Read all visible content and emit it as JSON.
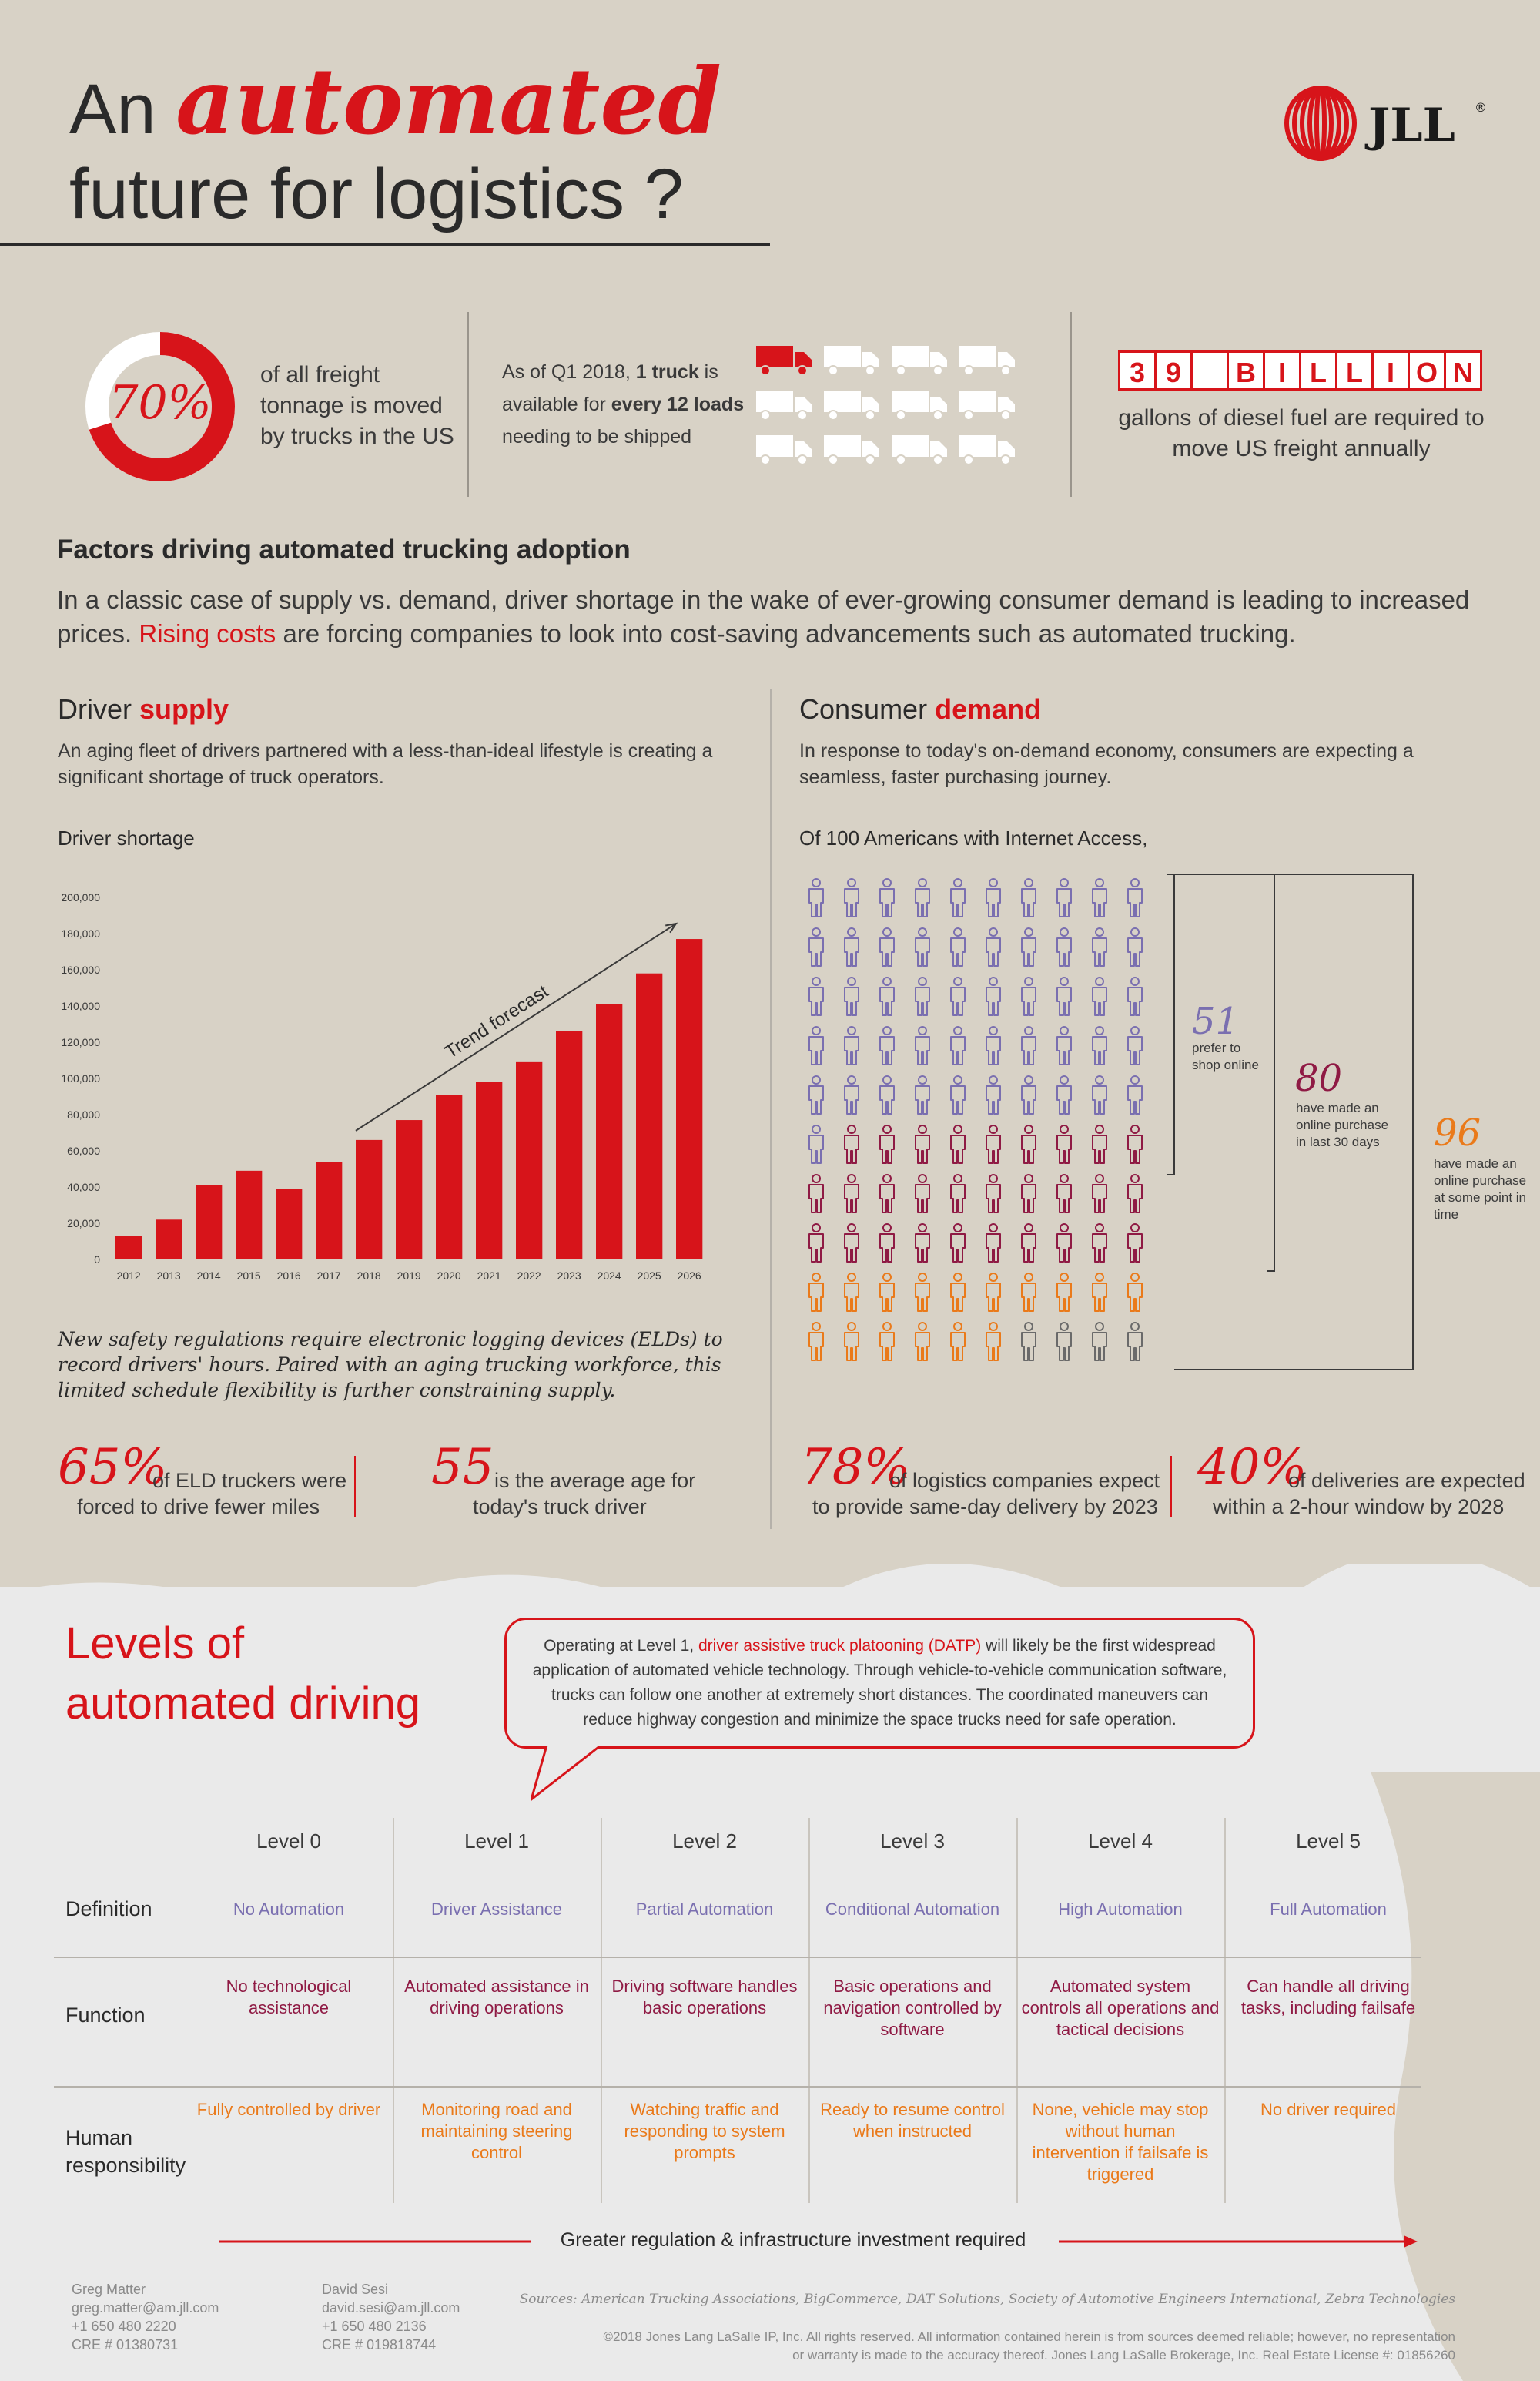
{
  "header": {
    "title_part1": "An",
    "title_accent": "automated",
    "title_part2": "future for logistics ?",
    "logo_text": "JLL",
    "logo_reg": "®"
  },
  "stats": {
    "freight_percent": "70%",
    "freight_percent_value": 0.7,
    "freight_text": [
      "of all freight",
      "tonnage is moved",
      "by trucks in the US"
    ],
    "truck_text_lines": [
      "As of Q1 2018,",
      "1 truck",
      "is",
      "available for",
      "every 12 loads",
      "needing to be shipped"
    ],
    "truck_highlighted": 1,
    "truck_total": 12,
    "diesel_letters": [
      "3",
      "9",
      "",
      "B",
      "I",
      "L",
      "L",
      "I",
      "O",
      "N"
    ],
    "diesel_text": [
      "gallons of diesel fuel are required to",
      "move US freight annually"
    ]
  },
  "factors": {
    "heading": "Factors driving automated trucking adoption",
    "body_pre": "In a classic case of supply vs. demand, driver shortage in the wake of ever-growing consumer demand is leading to increased prices.",
    "body_highlight": "Rising costs",
    "body_post": "are forcing companies to look into cost-saving advancements such as automated trucking."
  },
  "supply": {
    "heading_pre": "Driver",
    "heading_accent": "supply",
    "body": "An aging fleet of drivers partnered with a less-than-ideal lifestyle is creating a significant shortage of truck operators.",
    "chart_label": "Driver shortage",
    "trend_label": "Trend forecast",
    "note": "New safety regulations require electronic logging devices (ELDs) to record drivers' hours. Paired with an aging trucking workforce, this limited schedule flexibility is further constraining supply.",
    "stat1_value": "65%",
    "stat1_text": [
      "of ELD truckers were",
      "forced to drive fewer miles"
    ],
    "stat2_value": "55",
    "stat2_text": [
      "is the average age for",
      "today's truck driver"
    ]
  },
  "chart_data": {
    "type": "bar",
    "categories": [
      "2012",
      "2013",
      "2014",
      "2015",
      "2016",
      "2017",
      "2018",
      "2019",
      "2020",
      "2021",
      "2022",
      "2023",
      "2024",
      "2025",
      "2026"
    ],
    "values": [
      13000,
      22000,
      41000,
      49000,
      39000,
      54000,
      66000,
      77000,
      91000,
      98000,
      109000,
      126000,
      141000,
      158000,
      177000
    ],
    "ylim": [
      0,
      200000
    ],
    "yticks": [
      "0",
      "20,000",
      "40,000",
      "60,000",
      "80,000",
      "100,000",
      "120,000",
      "140,000",
      "160,000",
      "180,000",
      "200,000"
    ],
    "title": "Driver shortage",
    "bar_color": "#d7141a"
  },
  "demand": {
    "heading_pre": "Consumer",
    "heading_accent": "demand",
    "body": "In response to today's on-demand economy, consumers are expecting a seamless, faster purchasing journey.",
    "people_label": "Of 100 Americans with Internet Access,",
    "group1_value": "51",
    "group1_text": [
      "prefer to",
      "shop online"
    ],
    "group2_value": "80",
    "group2_text": [
      "have made an",
      "online purchase",
      "in last 30 days"
    ],
    "group3_value": "96",
    "group3_text": [
      "have made an",
      "online purchase",
      "at some point in",
      "time"
    ],
    "counts": {
      "shop_online": 51,
      "last_30_days": 80,
      "ever": 96,
      "total": 100
    },
    "colors": {
      "shop_online": "#7a6fb0",
      "last_30_days": "#8f1a44",
      "ever": "#ea7a1a",
      "never": "#6a6a6a"
    },
    "stat1_value": "78%",
    "stat1_text": [
      "of logistics companies expect",
      "to provide same-day delivery by 2023"
    ],
    "stat2_value": "40%",
    "stat2_text": [
      "of deliveries are expected",
      "within a 2-hour window by 2028"
    ]
  },
  "levels": {
    "title_line1": "Levels of",
    "title_line2": "automated driving",
    "callout_pre": "Operating at Level 1,",
    "callout_highlight": "driver assistive truck platooning (DATP)",
    "callout_post": "will likely be the first widespread application of automated vehicle technology. Through vehicle-to-vehicle communication software, trucks can follow one another at extremely short distances. The coordinated maneuvers can reduce highway congestion and minimize the space trucks need for safe operation.",
    "row_labels": {
      "definition": "Definition",
      "function": "Function",
      "human1": "Human",
      "human2": "responsibility"
    },
    "columns": [
      {
        "level": "Level 0",
        "definition": "No Automation",
        "function": "No technological assistance",
        "human": "Fully controlled by driver"
      },
      {
        "level": "Level 1",
        "definition": "Driver Assistance",
        "function": "Automated assistance in driving operations",
        "human": "Monitoring road and maintaining steering control"
      },
      {
        "level": "Level 2",
        "definition": "Partial Automation",
        "function": "Driving software handles basic operations",
        "human": "Watching traffic and responding to system prompts"
      },
      {
        "level": "Level 3",
        "definition": "Conditional Automation",
        "function": "Basic operations and navigation controlled by software",
        "human": "Ready to resume control when instructed"
      },
      {
        "level": "Level 4",
        "definition": "High Automation",
        "function": "Automated system controls all operations and tactical decisions",
        "human": "None, vehicle may stop without human intervention if failsafe is triggered"
      },
      {
        "level": "Level 5",
        "definition": "Full Automation",
        "function": "Can handle all driving tasks, including failsafe",
        "human": "No driver required"
      }
    ],
    "arrow_label": "Greater regulation & infrastructure investment required"
  },
  "footer": {
    "contact1": [
      "Greg Matter",
      "greg.matter@am.jll.com",
      "+1 650 480 2220",
      "CRE # 01380731"
    ],
    "contact2": [
      "David Sesi",
      "david.sesi@am.jll.com",
      "+1 650 480 2136",
      "CRE # 019818744"
    ],
    "sources": "Sources: American Trucking Associations, BigCommerce, DAT Solutions, Society of Automotive Engineers International, Zebra Technologies",
    "copyright1": "©2018 Jones Lang LaSalle IP, Inc. All rights reserved. All information contained herein is from sources deemed reliable; however, no representation",
    "copyright2": "or warranty is made to the accuracy thereof.  Jones Lang LaSalle Brokerage, Inc. Real Estate License #: 01856260"
  }
}
